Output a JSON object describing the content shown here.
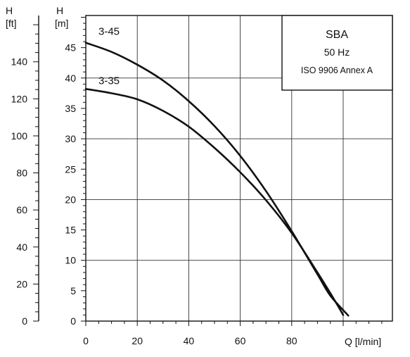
{
  "chart_data": {
    "type": "line",
    "title": "SBA",
    "legend": {
      "title": "SBA",
      "frequency": "50 Hz",
      "standard": "ISO 9906 Annex A",
      "placement": "top-right"
    },
    "xlabel": "Q [l/min]",
    "ylabel": {
      "symbol": "H",
      "unit": "[m]"
    },
    "y2label": {
      "symbol": "H",
      "unit": "[ft]"
    },
    "xlim": [
      0,
      120
    ],
    "ylim": [
      0,
      50
    ],
    "y2lim": [
      0,
      164
    ],
    "grid": true,
    "x_ticks": [
      "0",
      "20",
      "40",
      "60",
      "80",
      "Q [l/min]"
    ],
    "x_tick_values": [
      0,
      20,
      40,
      60,
      80
    ],
    "y_ticks": [
      "0",
      "5",
      "10",
      "15",
      "20",
      "25",
      "30",
      "35",
      "40",
      "45"
    ],
    "y_tick_values": [
      0,
      5,
      10,
      15,
      20,
      25,
      30,
      35,
      40,
      45
    ],
    "y2_ticks": [
      "0",
      "20",
      "40",
      "60",
      "80",
      "100",
      "120",
      "140"
    ],
    "y2_tick_values": [
      0,
      20,
      40,
      60,
      80,
      100,
      120,
      140
    ],
    "series": [
      {
        "name": "3-45",
        "color": "#111111",
        "x": [
          0,
          10,
          20,
          30,
          40,
          50,
          60,
          70,
          80,
          90,
          95,
          102
        ],
        "y": [
          45.8,
          44.3,
          42.2,
          39.6,
          36.2,
          32.1,
          27.2,
          21.4,
          14.8,
          7.7,
          4.2,
          0.9
        ]
      },
      {
        "name": "3-35",
        "color": "#111111",
        "x": [
          0,
          10,
          20,
          30,
          40,
          50,
          60,
          70,
          80,
          90,
          97,
          100
        ],
        "y": [
          38.2,
          37.5,
          36.5,
          34.6,
          32.0,
          28.5,
          24.5,
          19.9,
          14.5,
          8.0,
          3.2,
          1.0
        ]
      }
    ]
  }
}
